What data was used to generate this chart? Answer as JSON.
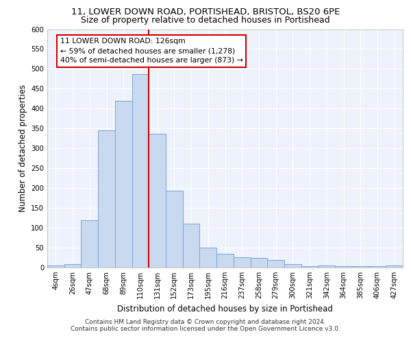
{
  "title1": "11, LOWER DOWN ROAD, PORTISHEAD, BRISTOL, BS20 6PE",
  "title2": "Size of property relative to detached houses in Portishead",
  "xlabel": "Distribution of detached houses by size in Portishead",
  "ylabel": "Number of detached properties",
  "bin_labels": [
    "4sqm",
    "26sqm",
    "47sqm",
    "68sqm",
    "89sqm",
    "110sqm",
    "131sqm",
    "152sqm",
    "173sqm",
    "195sqm",
    "216sqm",
    "237sqm",
    "258sqm",
    "279sqm",
    "300sqm",
    "321sqm",
    "342sqm",
    "364sqm",
    "385sqm",
    "406sqm",
    "427sqm"
  ],
  "bar_values": [
    5,
    8,
    120,
    345,
    420,
    487,
    337,
    193,
    111,
    50,
    35,
    26,
    25,
    19,
    9,
    3,
    5,
    4,
    4,
    3,
    5
  ],
  "bar_color": "#c9d9f0",
  "bar_edge_color": "#7ba3d4",
  "vline_x": 5.5,
  "vline_color": "#cc0000",
  "annotation_text": "11 LOWER DOWN ROAD: 126sqm\n← 59% of detached houses are smaller (1,278)\n40% of semi-detached houses are larger (873) →",
  "annotation_box_color": "#ffffff",
  "annotation_box_edge": "#cc0000",
  "footer1": "Contains HM Land Registry data © Crown copyright and database right 2024.",
  "footer2": "Contains public sector information licensed under the Open Government Licence v3.0.",
  "ylim": [
    0,
    600
  ],
  "yticks": [
    0,
    50,
    100,
    150,
    200,
    250,
    300,
    350,
    400,
    450,
    500,
    550,
    600
  ],
  "background_color": "#eef2fb",
  "grid_color": "#ffffff",
  "title1_fontsize": 9.5,
  "title2_fontsize": 9.0,
  "xlabel_fontsize": 8.5,
  "ylabel_fontsize": 8.5,
  "tick_fontsize": 7.2,
  "annotation_fontsize": 7.8,
  "footer_fontsize": 6.5
}
